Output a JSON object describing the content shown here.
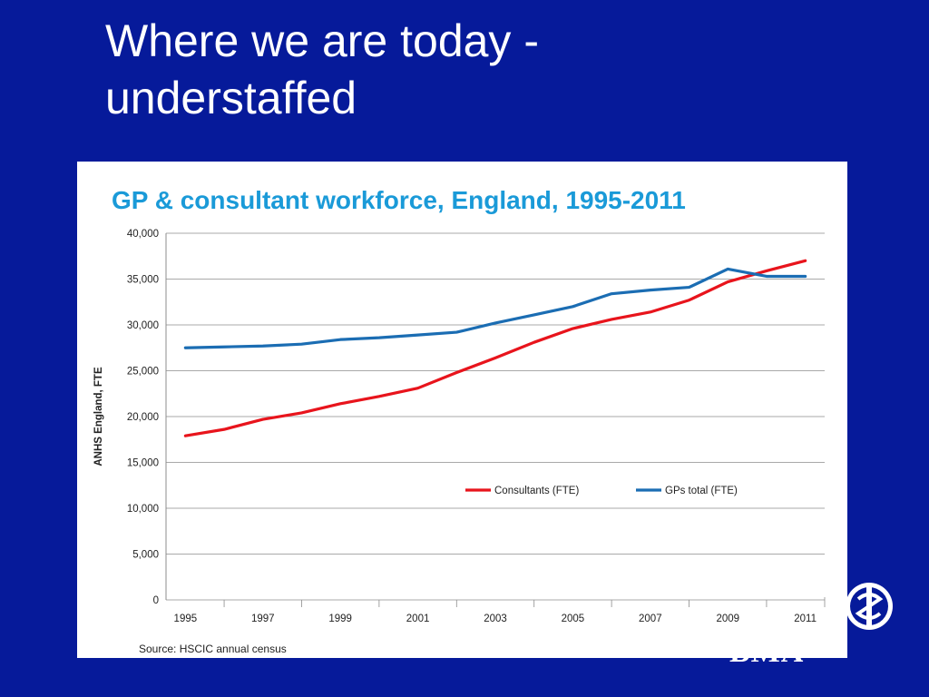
{
  "slide": {
    "title_line1": "Where we are today -",
    "title_line2": "understaffed",
    "background_color": "#061a9a",
    "logo_text": "BMA"
  },
  "chart_data": {
    "type": "line",
    "title": "GP & consultant workforce, England, 1995-2011",
    "title_color": "#1a9ad8",
    "xlabel": "",
    "ylabel": "ANHS England, FTE",
    "x_ticks": [
      "1995",
      "1997",
      "1999",
      "2001",
      "2003",
      "2005",
      "2007",
      "2009",
      "2011"
    ],
    "y_ticks": [
      "0",
      "5,000",
      "10,000",
      "15,000",
      "20,000",
      "25,000",
      "30,000",
      "35,000",
      "40,000"
    ],
    "xlim": [
      1994.5,
      2011.5
    ],
    "ylim": [
      0,
      40000
    ],
    "grid": true,
    "legend_position": "center-right",
    "source": "Source: HSCIC annual census",
    "x": [
      1995,
      1996,
      1997,
      1998,
      1999,
      2000,
      2001,
      2002,
      2003,
      2004,
      2005,
      2006,
      2007,
      2008,
      2009,
      2010,
      2011
    ],
    "series": [
      {
        "name": "Consultants (FTE)",
        "color": "#e8141c",
        "values": [
          17900,
          18600,
          19700,
          20400,
          21400,
          22200,
          23100,
          24800,
          26400,
          28100,
          29600,
          30600,
          31400,
          32700,
          34700,
          35900,
          37000
        ]
      },
      {
        "name": "GPs total (FTE)",
        "color": "#1b6db3",
        "values": [
          27500,
          27600,
          27700,
          27900,
          28400,
          28600,
          28900,
          29200,
          30200,
          31100,
          32000,
          33400,
          33800,
          34100,
          36100,
          35300,
          35300
        ]
      }
    ]
  }
}
